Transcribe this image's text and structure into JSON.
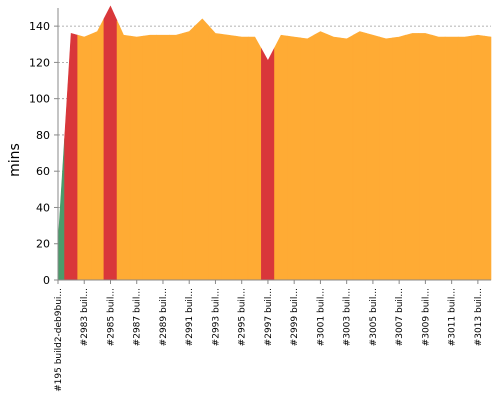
{
  "chart_data": {
    "type": "area",
    "ylabel": "mins",
    "ylim": [
      0,
      150
    ],
    "yticks": [
      0,
      20,
      40,
      60,
      80,
      100,
      120,
      140
    ],
    "grid": true,
    "colors": {
      "success": "#4b9b6b",
      "unstable": "#ffab34",
      "failure": "#d9373a",
      "grid": "#999999"
    },
    "x_tick_labels": [
      "#195 build2-deb9bui...",
      "#2983 buil...",
      "#2985 buil...",
      "#2987 buil...",
      "#2989 buil...",
      "#2991 buil...",
      "#2993 buil...",
      "#2995 buil...",
      "#2997 buil...",
      "#2999 buil...",
      "#3001 buil...",
      "#3003 buil...",
      "#3005 buil...",
      "#3007 buil...",
      "#3009 buil...",
      "#3011 buil...",
      "#3013 buil..."
    ],
    "builds": [
      {
        "value": 20,
        "status": "success"
      },
      {
        "value": 136,
        "status": "failure"
      },
      {
        "value": 134,
        "status": "unstable"
      },
      {
        "value": 137,
        "status": "unstable"
      },
      {
        "value": 151,
        "status": "failure"
      },
      {
        "value": 135,
        "status": "unstable"
      },
      {
        "value": 134,
        "status": "unstable"
      },
      {
        "value": 135,
        "status": "unstable"
      },
      {
        "value": 135,
        "status": "unstable"
      },
      {
        "value": 135,
        "status": "unstable"
      },
      {
        "value": 137,
        "status": "unstable"
      },
      {
        "value": 144,
        "status": "unstable"
      },
      {
        "value": 136,
        "status": "unstable"
      },
      {
        "value": 135,
        "status": "unstable"
      },
      {
        "value": 134,
        "status": "unstable"
      },
      {
        "value": 134,
        "status": "unstable"
      },
      {
        "value": 121,
        "status": "failure"
      },
      {
        "value": 135,
        "status": "unstable"
      },
      {
        "value": 134,
        "status": "unstable"
      },
      {
        "value": 133,
        "status": "unstable"
      },
      {
        "value": 137,
        "status": "unstable"
      },
      {
        "value": 134,
        "status": "unstable"
      },
      {
        "value": 133,
        "status": "unstable"
      },
      {
        "value": 137,
        "status": "unstable"
      },
      {
        "value": 135,
        "status": "unstable"
      },
      {
        "value": 133,
        "status": "unstable"
      },
      {
        "value": 134,
        "status": "unstable"
      },
      {
        "value": 136,
        "status": "unstable"
      },
      {
        "value": 136,
        "status": "unstable"
      },
      {
        "value": 134,
        "status": "unstable"
      },
      {
        "value": 134,
        "status": "unstable"
      },
      {
        "value": 134,
        "status": "unstable"
      },
      {
        "value": 135,
        "status": "unstable"
      },
      {
        "value": 134,
        "status": "unstable"
      }
    ]
  }
}
